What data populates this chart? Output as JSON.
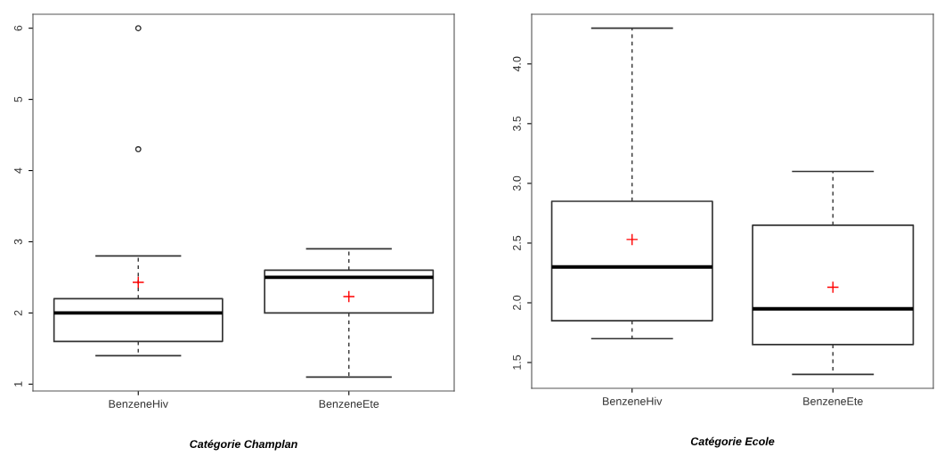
{
  "chart_data": [
    {
      "type": "box",
      "categories": [
        "BenzeneHiv",
        "BenzeneEte"
      ],
      "xlabel": "Catégorie Champlan",
      "ylim": [
        0.904,
        6.196
      ],
      "yticks": [
        1,
        2,
        3,
        4,
        5,
        6
      ],
      "grid": false,
      "boxes": [
        {
          "low": 1.4,
          "q1": 1.6,
          "median": 2.0,
          "q3": 2.2,
          "high": 2.8,
          "mean": 2.43,
          "outliers": [
            4.3,
            6.0
          ]
        },
        {
          "low": 1.1,
          "q1": 2.0,
          "median": 2.5,
          "q3": 2.6,
          "high": 2.9,
          "mean": 2.23
        }
      ]
    },
    {
      "type": "box",
      "categories": [
        "BenzeneHiv",
        "BenzeneEte"
      ],
      "xlabel": "Catégorie Ecole",
      "ylim": [
        1.284,
        4.416
      ],
      "yticks": [
        {
          "value": 1.5,
          "label": "1.5"
        },
        {
          "value": 2.0,
          "label": "2.0"
        },
        {
          "value": 2.5,
          "label": "2.5"
        },
        {
          "value": 3.0,
          "label": "3.0"
        },
        {
          "value": 3.5,
          "label": "3.5"
        },
        {
          "value": 4.0,
          "label": "4.0"
        }
      ],
      "grid": false,
      "boxes": [
        {
          "low": 1.7,
          "q1": 1.85,
          "median": 2.3,
          "q3": 2.85,
          "high": 4.3,
          "mean": 2.53
        },
        {
          "low": 1.4,
          "q1": 1.65,
          "median": 1.95,
          "q3": 2.65,
          "high": 3.1,
          "mean": 2.13
        }
      ]
    }
  ]
}
